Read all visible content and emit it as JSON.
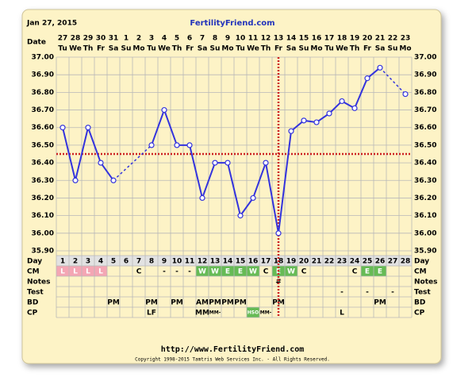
{
  "header": {
    "date": "Jan 27, 2015",
    "site": "FertilityFriend.com"
  },
  "chart_data": {
    "type": "line",
    "date_label": "Date",
    "dates": [
      "27",
      "28",
      "29",
      "30",
      "31",
      "1",
      "2",
      "3",
      "4",
      "5",
      "6",
      "7",
      "8",
      "9",
      "10",
      "11",
      "12",
      "13",
      "14",
      "15",
      "16",
      "17",
      "18",
      "19",
      "20",
      "21",
      "22",
      "23"
    ],
    "weekdays": [
      "Tu",
      "We",
      "Th",
      "Fr",
      "Sa",
      "Su",
      "Mo",
      "Tu",
      "We",
      "Th",
      "Fr",
      "Sa",
      "Su",
      "Mo",
      "Tu",
      "We",
      "Th",
      "Fr",
      "Sa",
      "Su",
      "Mo",
      "Tu",
      "We",
      "Th",
      "Fr",
      "Sa",
      "Su",
      "Mo"
    ],
    "day_label": "Day",
    "categories": [
      1,
      2,
      3,
      4,
      5,
      6,
      7,
      8,
      9,
      10,
      11,
      12,
      13,
      14,
      15,
      16,
      17,
      18,
      19,
      20,
      21,
      22,
      23,
      24,
      25,
      26,
      27,
      28
    ],
    "values": [
      36.6,
      36.3,
      36.6,
      36.4,
      36.3,
      null,
      null,
      36.5,
      36.7,
      36.5,
      36.5,
      36.2,
      36.4,
      36.4,
      36.1,
      36.2,
      36.4,
      36.0,
      36.58,
      36.64,
      36.63,
      36.68,
      36.75,
      36.71,
      36.88,
      36.94,
      null,
      36.79
    ],
    "color": "#3333dd",
    "ylim": [
      35.9,
      37.0
    ],
    "yticks": [
      {
        "value": 37.0,
        "label": "37.00"
      },
      {
        "value": 36.9,
        "label": "36.90"
      },
      {
        "value": 36.8,
        "label": "36.80"
      },
      {
        "value": 36.7,
        "label": "36.70"
      },
      {
        "value": 36.6,
        "label": "36.60"
      },
      {
        "value": 36.5,
        "label": "36.50"
      },
      {
        "value": 36.4,
        "label": "36.40"
      },
      {
        "value": 36.3,
        "label": "36.30"
      },
      {
        "value": 36.2,
        "label": "36.20"
      },
      {
        "value": 36.1,
        "label": "36.10"
      },
      {
        "value": 36.0,
        "label": "36.00"
      },
      {
        "value": 35.9,
        "label": "35.90"
      }
    ],
    "grid": true,
    "coverline": 36.45,
    "ovulation_day": 18,
    "marker_color": "#cc2222",
    "rows": [
      {
        "label": "CM",
        "cells": [
          "L",
          "L",
          "L",
          "L",
          null,
          null,
          "C",
          null,
          "-",
          "-",
          "-",
          "W",
          "W",
          "E",
          "E",
          "W",
          "C",
          "E",
          "W",
          "C",
          null,
          null,
          null,
          "C",
          "E",
          "E",
          null,
          null
        ],
        "colors": [
          "#f4a6b4",
          "#f4a6b4",
          "#f4a6b4",
          "#f4a6b4",
          null,
          null,
          null,
          null,
          null,
          null,
          null,
          "#66bb55",
          "#66bb55",
          "#66bb55",
          "#66bb55",
          "#66bb55",
          null,
          "#66bb55",
          "#66bb55",
          null,
          null,
          null,
          null,
          null,
          "#66bb55",
          "#66bb55",
          null,
          null
        ]
      },
      {
        "label": "Notes",
        "cells": [
          null,
          null,
          null,
          null,
          null,
          null,
          null,
          null,
          null,
          null,
          null,
          null,
          null,
          null,
          null,
          null,
          null,
          "#",
          null,
          null,
          null,
          null,
          null,
          null,
          null,
          null,
          null,
          null
        ]
      },
      {
        "label": "Test",
        "cells": [
          null,
          null,
          null,
          null,
          null,
          null,
          null,
          null,
          null,
          null,
          null,
          null,
          null,
          null,
          null,
          null,
          null,
          null,
          null,
          null,
          null,
          null,
          "-",
          null,
          "-",
          null,
          "-",
          null
        ]
      },
      {
        "label": "BD",
        "cells": [
          null,
          null,
          null,
          null,
          "PM",
          null,
          null,
          "PM",
          null,
          "PM",
          null,
          "AM",
          "PM",
          "PM",
          "PM",
          null,
          null,
          "PM",
          null,
          null,
          null,
          null,
          null,
          null,
          null,
          "PM",
          null,
          null
        ]
      },
      {
        "label": "CP",
        "cells": [
          null,
          null,
          null,
          null,
          null,
          null,
          null,
          "LF",
          null,
          null,
          null,
          "MM",
          "MM-",
          null,
          null,
          "HSO",
          "MM-",
          null,
          null,
          null,
          null,
          null,
          "L",
          null,
          null,
          null,
          null,
          null
        ],
        "colors": [
          null,
          null,
          null,
          null,
          null,
          null,
          null,
          null,
          null,
          null,
          null,
          null,
          null,
          null,
          null,
          "#66bb55",
          null,
          null,
          null,
          null,
          null,
          null,
          null,
          null,
          null,
          null,
          null,
          null
        ]
      }
    ]
  },
  "footer": {
    "url": "http://www.FertilityFriend.com",
    "copyright": "Copyright 1998-2015 Tamtris Web Services Inc. - All Rights Reserved."
  }
}
